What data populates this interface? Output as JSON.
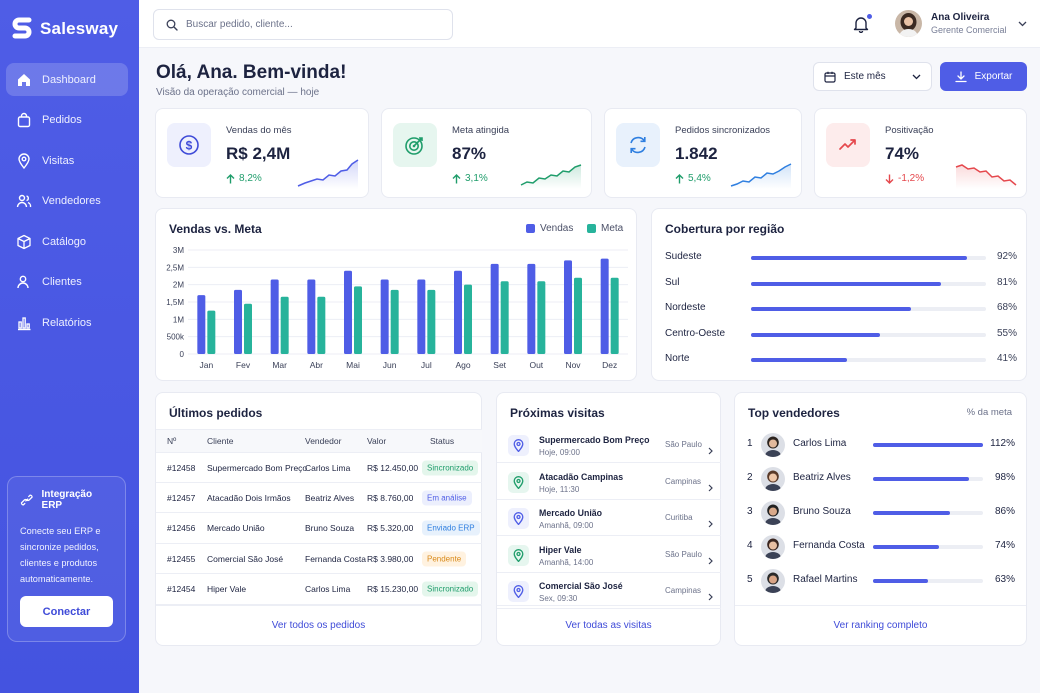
{
  "app": {
    "name": "Salesway"
  },
  "sidebar": {
    "items": [
      {
        "label": "Dashboard",
        "icon": "home-icon",
        "active": true
      },
      {
        "label": "Pedidos",
        "icon": "bag-icon"
      },
      {
        "label": "Visitas",
        "icon": "map-pin-icon"
      },
      {
        "label": "Vendedores",
        "icon": "users-icon"
      },
      {
        "label": "Catálogo",
        "icon": "box-icon"
      },
      {
        "label": "Clientes",
        "icon": "user-icon"
      },
      {
        "label": "Relatórios",
        "icon": "bar-chart-icon"
      }
    ],
    "erp": {
      "title": "Integração ERP",
      "description": "Conecte seu ERP e sincronize pedidos, clientes e produtos automaticamente.",
      "button": "Conectar"
    }
  },
  "topbar": {
    "search_placeholder": "Buscar pedido, cliente...",
    "user_name": "Ana Oliveira",
    "user_role": "Gerente Comercial"
  },
  "header": {
    "title": "Olá, Ana. Bem-vinda!",
    "subtitle": "Visão da operação comercial — hoje",
    "period": "Este mês",
    "export": "Exportar"
  },
  "kpis": [
    {
      "label": "Vendas do mês",
      "value": "R$ 2,4M",
      "delta": "8,2%",
      "trend": "up",
      "icon": "dollar-icon",
      "color": "#4f5de6",
      "bg": "#eef0fd"
    },
    {
      "label": "Meta atingida",
      "value": "87%",
      "delta": "3,1%",
      "trend": "up",
      "icon": "target-icon",
      "color": "#1f9d6b",
      "bg": "#e6f6ef"
    },
    {
      "label": "Pedidos sincronizados",
      "value": "1.842",
      "delta": "5,4%",
      "trend": "up",
      "icon": "sync-icon",
      "color": "#2f7fe0",
      "bg": "#e8f1fc"
    },
    {
      "label": "Positivação",
      "value": "74%",
      "delta": "-1,2%",
      "trend": "down",
      "icon": "trend-icon",
      "color": "#e5484d",
      "bg": "#fdecec"
    }
  ],
  "sales_chart": {
    "title": "Vendas vs. Meta",
    "legend": [
      "Vendas",
      "Meta"
    ],
    "colors": [
      "#4f5de6",
      "#27b39b"
    ]
  },
  "chart_data": {
    "type": "bar",
    "categories": [
      "Jan",
      "Fev",
      "Mar",
      "Abr",
      "Mai",
      "Jun",
      "Jul",
      "Ago",
      "Set",
      "Out",
      "Nov",
      "Dez"
    ],
    "series": [
      {
        "name": "Vendas",
        "values": [
          1.7,
          1.85,
          2.15,
          2.15,
          2.4,
          2.15,
          2.15,
          2.4,
          2.6,
          2.6,
          2.7,
          2.75
        ]
      },
      {
        "name": "Meta",
        "values": [
          1.25,
          1.45,
          1.65,
          1.65,
          1.95,
          1.85,
          1.85,
          2.0,
          2.1,
          2.1,
          2.2,
          2.2
        ]
      }
    ],
    "ytick_labels": [
      "0",
      "500k",
      "1M",
      "1,5M",
      "2M",
      "2,5M",
      "3M"
    ],
    "ylim": [
      0,
      3
    ],
    "grid": true,
    "legend_position": "top-right"
  },
  "coverage": {
    "title": "Cobertura por região",
    "regions": [
      {
        "name": "Sudeste",
        "pct": "92%",
        "value": 0.92
      },
      {
        "name": "Sul",
        "pct": "81%",
        "value": 0.81
      },
      {
        "name": "Nordeste",
        "pct": "68%",
        "value": 0.68
      },
      {
        "name": "Centro-Oeste",
        "pct": "55%",
        "value": 0.55
      },
      {
        "name": "Norte",
        "pct": "41%",
        "value": 0.41
      }
    ]
  },
  "orders": {
    "title": "Últimos pedidos",
    "columns": [
      "Nº",
      "Cliente",
      "Vendedor",
      "Valor",
      "Status"
    ],
    "rows": [
      {
        "id": "#12458",
        "client": "Supermercado Bom Preço",
        "seller": "Carlos Lima",
        "value": "R$ 12.450,00",
        "status": "Sincronizado",
        "kind": "green"
      },
      {
        "id": "#12457",
        "client": "Atacadão Dois Irmãos",
        "seller": "Beatriz Alves",
        "value": "R$ 8.760,00",
        "status": "Em análise",
        "kind": "blue"
      },
      {
        "id": "#12456",
        "client": "Mercado União",
        "seller": "Bruno Souza",
        "value": "R$ 5.320,00",
        "status": "Enviado ERP",
        "kind": "sky"
      },
      {
        "id": "#12455",
        "client": "Comercial São José",
        "seller": "Fernanda Costa",
        "value": "R$ 3.980,00",
        "status": "Pendente",
        "kind": "orange"
      },
      {
        "id": "#12454",
        "client": "Hiper Vale",
        "seller": "Carlos Lima",
        "value": "R$ 15.230,00",
        "status": "Sincronizado",
        "kind": "green"
      }
    ],
    "footer": "Ver todos os pedidos"
  },
  "visits": {
    "title": "Próximas visitas",
    "items": [
      {
        "name": "Supermercado Bom Preço",
        "time": "Hoje, 09:00",
        "city": "São Paulo",
        "color": "#4f5de6",
        "bg": "#eef0fd"
      },
      {
        "name": "Atacadão Campinas",
        "time": "Hoje, 11:30",
        "city": "Campinas",
        "color": "#1f9d6b",
        "bg": "#e6f6ef"
      },
      {
        "name": "Mercado União",
        "time": "Amanhã, 09:00",
        "city": "Curitiba",
        "color": "#4f5de6",
        "bg": "#eef0fd"
      },
      {
        "name": "Hiper Vale",
        "time": "Amanhã, 14:00",
        "city": "São Paulo",
        "color": "#1f9d6b",
        "bg": "#e6f6ef"
      },
      {
        "name": "Comercial São José",
        "time": "Sex, 09:30",
        "city": "Campinas",
        "color": "#4f5de6",
        "bg": "#eef0fd"
      }
    ],
    "footer": "Ver todas as visitas"
  },
  "sellers": {
    "title": "Top vendedores",
    "metric_label": "% da meta",
    "items": [
      {
        "rank": "1",
        "name": "Carlos Lima",
        "pct": "112%",
        "value": 1.0
      },
      {
        "rank": "2",
        "name": "Beatriz Alves",
        "pct": "98%",
        "value": 0.87
      },
      {
        "rank": "3",
        "name": "Bruno Souza",
        "pct": "86%",
        "value": 0.7
      },
      {
        "rank": "4",
        "name": "Fernanda Costa",
        "pct": "74%",
        "value": 0.6
      },
      {
        "rank": "5",
        "name": "Rafael Martins",
        "pct": "63%",
        "value": 0.5
      }
    ],
    "footer": "Ver ranking completo"
  }
}
